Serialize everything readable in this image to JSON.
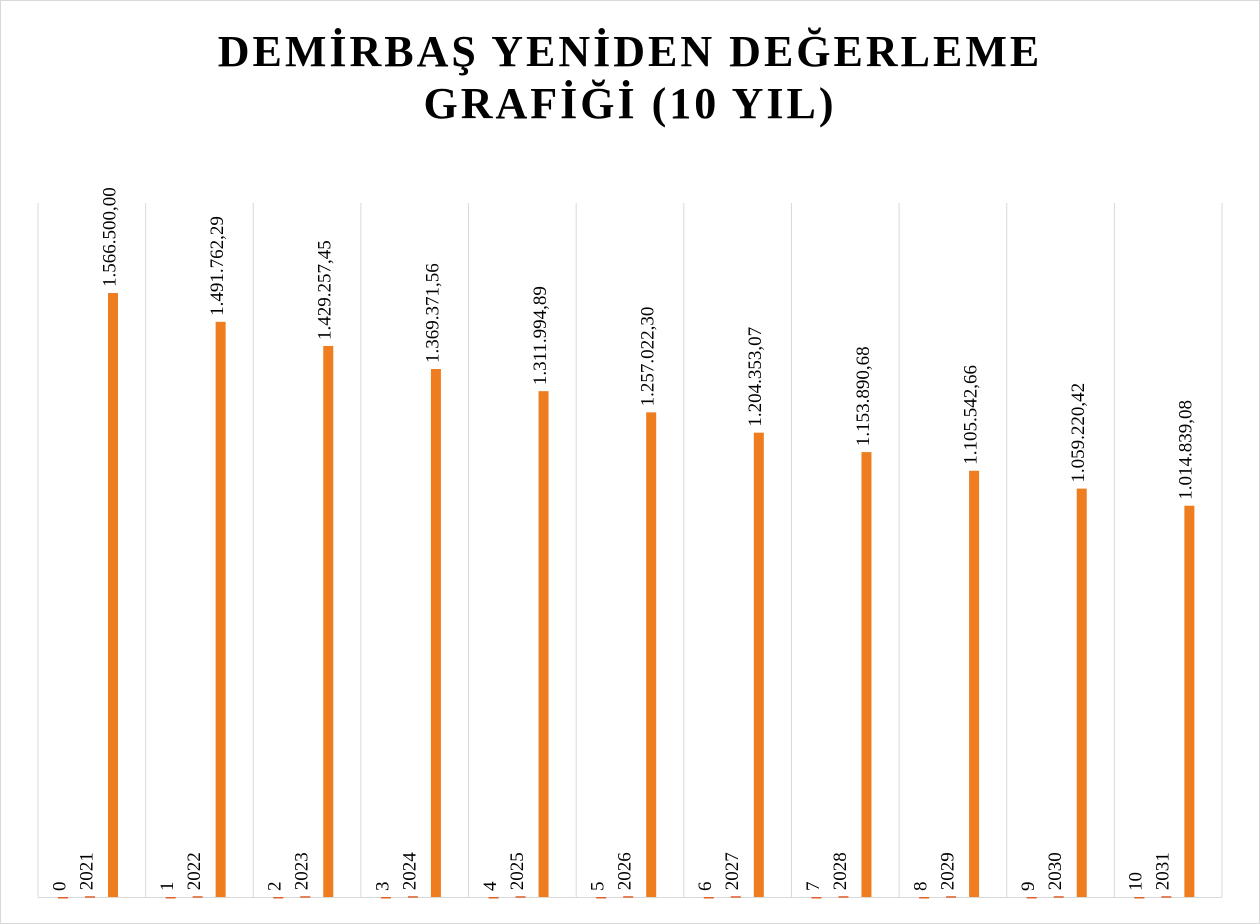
{
  "chart_data": {
    "type": "bar",
    "title": "DEMİRBAŞ YENİDEN DEĞERLEME GRAFİĞİ (10 YIL)",
    "ylim": [
      0,
      1800000
    ],
    "series": [
      {
        "color": "#e0602c",
        "values": [
          0,
          1,
          2,
          3,
          4,
          5,
          6,
          7,
          8,
          9,
          10
        ]
      },
      {
        "color": "#e0602c",
        "values": [
          2021,
          2022,
          2023,
          2024,
          2025,
          2026,
          2027,
          2028,
          2029,
          2030,
          2031
        ]
      },
      {
        "color": "#ed7d1f",
        "values": [
          1566500.0,
          1491762.29,
          1429257.45,
          1369371.56,
          1311994.89,
          1257022.3,
          1204353.07,
          1153890.68,
          1105542.66,
          1059220.42,
          1014839.08
        ],
        "value_labels": [
          "1.566.500,00",
          "1.491.762,29",
          "1.429.257,45",
          "1.369.371,56",
          "1.311.994,89",
          "1.257.022,30",
          "1.204.353,07",
          "1.153.890,68",
          "1.105.542,66",
          "1.059.220,42",
          "1.014.839,08"
        ]
      }
    ]
  }
}
